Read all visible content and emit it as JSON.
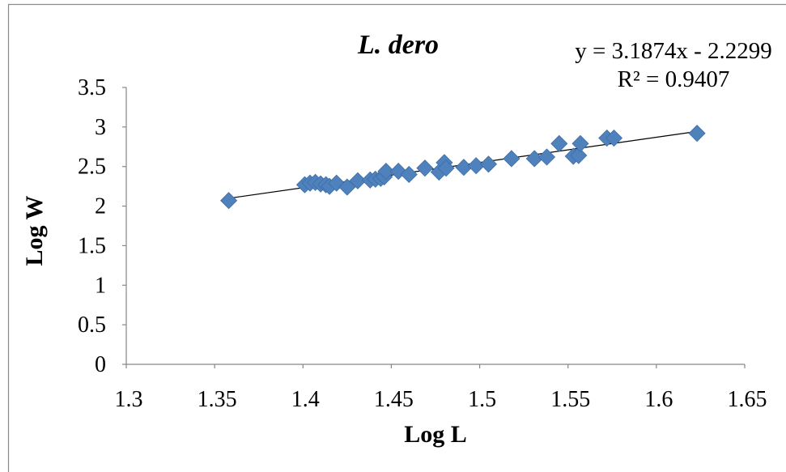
{
  "chart_data": {
    "type": "scatter",
    "title": "L. dero",
    "xlabel": "Log L",
    "ylabel": "Log W",
    "xlim": [
      1.3,
      1.65
    ],
    "ylim": [
      0,
      3.5
    ],
    "x_ticks": [
      "1.3",
      "1.35",
      "1.4",
      "1.45",
      "1.5",
      "1.55",
      "1.6",
      "1.65"
    ],
    "y_ticks": [
      "0",
      "0.5",
      "1",
      "1.5",
      "2",
      "2.5",
      "3",
      "3.5"
    ],
    "grid": false,
    "legend": "none",
    "marker": "diamond",
    "colors": {
      "marker": "#4F81BD",
      "marker_edge": "#3E6EA6",
      "trendline": "#000000"
    },
    "points": [
      {
        "x": 1.358,
        "y": 2.07
      },
      {
        "x": 1.401,
        "y": 2.27
      },
      {
        "x": 1.404,
        "y": 2.29
      },
      {
        "x": 1.407,
        "y": 2.3
      },
      {
        "x": 1.41,
        "y": 2.28
      },
      {
        "x": 1.413,
        "y": 2.27
      },
      {
        "x": 1.415,
        "y": 2.25
      },
      {
        "x": 1.419,
        "y": 2.29
      },
      {
        "x": 1.425,
        "y": 2.24
      },
      {
        "x": 1.431,
        "y": 2.32
      },
      {
        "x": 1.438,
        "y": 2.33
      },
      {
        "x": 1.441,
        "y": 2.34
      },
      {
        "x": 1.444,
        "y": 2.35
      },
      {
        "x": 1.446,
        "y": 2.37
      },
      {
        "x": 1.447,
        "y": 2.44
      },
      {
        "x": 1.454,
        "y": 2.44
      },
      {
        "x": 1.46,
        "y": 2.4
      },
      {
        "x": 1.469,
        "y": 2.48
      },
      {
        "x": 1.477,
        "y": 2.43
      },
      {
        "x": 1.48,
        "y": 2.55
      },
      {
        "x": 1.481,
        "y": 2.48
      },
      {
        "x": 1.491,
        "y": 2.49
      },
      {
        "x": 1.498,
        "y": 2.51
      },
      {
        "x": 1.505,
        "y": 2.53
      },
      {
        "x": 1.518,
        "y": 2.6
      },
      {
        "x": 1.531,
        "y": 2.6
      },
      {
        "x": 1.538,
        "y": 2.62
      },
      {
        "x": 1.545,
        "y": 2.79
      },
      {
        "x": 1.553,
        "y": 2.63
      },
      {
        "x": 1.556,
        "y": 2.64
      },
      {
        "x": 1.557,
        "y": 2.79
      },
      {
        "x": 1.572,
        "y": 2.86
      },
      {
        "x": 1.576,
        "y": 2.86
      },
      {
        "x": 1.623,
        "y": 2.92
      }
    ],
    "trendline": {
      "type": "linear",
      "slope": 3.1874,
      "intercept": -2.2299,
      "equation": "y = 3.1874x - 2.2299",
      "r_squared": "R² = 0.9407"
    }
  }
}
